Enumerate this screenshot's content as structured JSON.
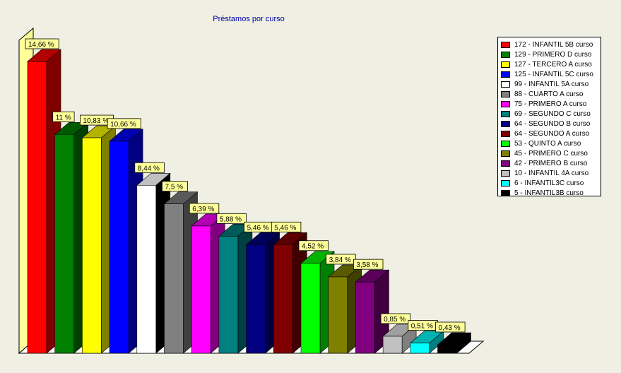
{
  "chart_data": {
    "type": "bar",
    "title": "Préstamos por curso",
    "xlabel": "",
    "ylabel": "",
    "grid": false,
    "legend_position": "right",
    "categories": [
      "172  - INFANTIL 5B curso",
      "129  - PRIMERO D curso",
      "127  - TERCERO A curso",
      "125  - INFANTIL 5C curso",
      "99  - INFANTIL 5A curso",
      "88  - CUARTO A curso",
      "75  - PRIMERO A curso",
      "69  - SEGUNDO C curso",
      "64  - SEGUNDO B curso",
      "64  - SEGUNDO A curso",
      "53  - QUINTO A curso",
      "45  - PRIMERO C curso",
      "42  - PRIMERO B curso",
      "10  - INFANTIL 4A curso",
      "6  - INFANTIL3C curso",
      "5  - INFANTIL3B curso"
    ],
    "values": [
      172,
      129,
      127,
      125,
      99,
      88,
      75,
      69,
      64,
      64,
      53,
      45,
      42,
      10,
      6,
      5
    ],
    "labels": [
      "14,66 %",
      "11 %",
      "10,83 %",
      "10,66 %",
      "8,44 %",
      "7,5 %",
      "6,39 %",
      "5,88 %",
      "5,46 %",
      "5,46 %",
      "4,52 %",
      "3,84 %",
      "3,58 %",
      "0,85 %",
      "0,51 %",
      "0,43 %"
    ],
    "colors": [
      "#ff0000",
      "#008000",
      "#ffff00",
      "#0000ff",
      "#ffffff",
      "#808080",
      "#ff00ff",
      "#008080",
      "#000080",
      "#800000",
      "#00ff00",
      "#808000",
      "#800080",
      "#c0c0c0",
      "#00ffff",
      "#000000"
    ],
    "ylim": [
      0,
      172
    ]
  }
}
